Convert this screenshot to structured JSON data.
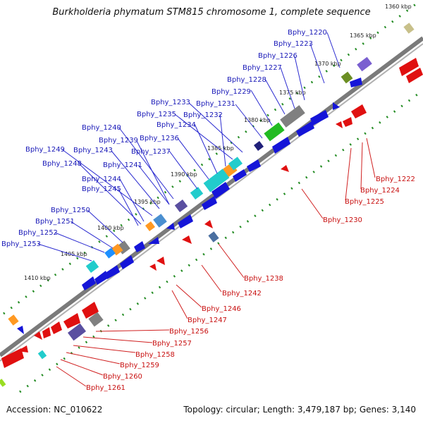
{
  "title": "Burkholderia phymatum STM815 chromosome 1, complete sequence",
  "footer": {
    "accession": "Accession: NC_010622",
    "summary": "Topology: circular; Length: 3,479,187 bp; Genes: 3,140"
  },
  "colors": {
    "forward_gene": "#1515d8",
    "reverse_gene": "#e01010",
    "backbone": "#7a7a7a",
    "tick": "#228b22",
    "label_blue": "#1a1ab8",
    "label_red": "#c81010"
  },
  "kbp_ticks": [
    "1360 kbp",
    "1365 kbp",
    "1370 kbp",
    "1375 kbp",
    "1380 kbp",
    "1385 kbp",
    "1390 kbp",
    "1395 kbp",
    "1400 kbp",
    "1405 kbp",
    "1410 kbp"
  ],
  "forward_labels": [
    "Bphy_1220",
    "Bphy_1223",
    "Bphy_1226",
    "Bphy_1227",
    "Bphy_1228",
    "Bphy_1229",
    "Bphy_1231",
    "Bphy_1233",
    "Bphy_1235",
    "Bphy_1232",
    "Bphy_1234",
    "Bphy_1236",
    "Bphy_1237",
    "Bphy_1240",
    "Bphy_1239",
    "Bphy_1249",
    "Bphy_1243",
    "Bphy_1248",
    "Bphy_1241",
    "Bphy_1244",
    "Bphy_1245",
    "Bphy_1250",
    "Bphy_1251",
    "Bphy_1252",
    "Bphy_1253"
  ],
  "reverse_labels": [
    "Bphy_1222",
    "Bphy_1224",
    "Bphy_1225",
    "Bphy_1230",
    "Bphy_1238",
    "Bphy_1242",
    "Bphy_1246",
    "Bphy_1247",
    "Bphy_1256",
    "Bphy_1257",
    "Bphy_1258",
    "Bphy_1259",
    "Bphy_1260",
    "Bphy_1261"
  ]
}
